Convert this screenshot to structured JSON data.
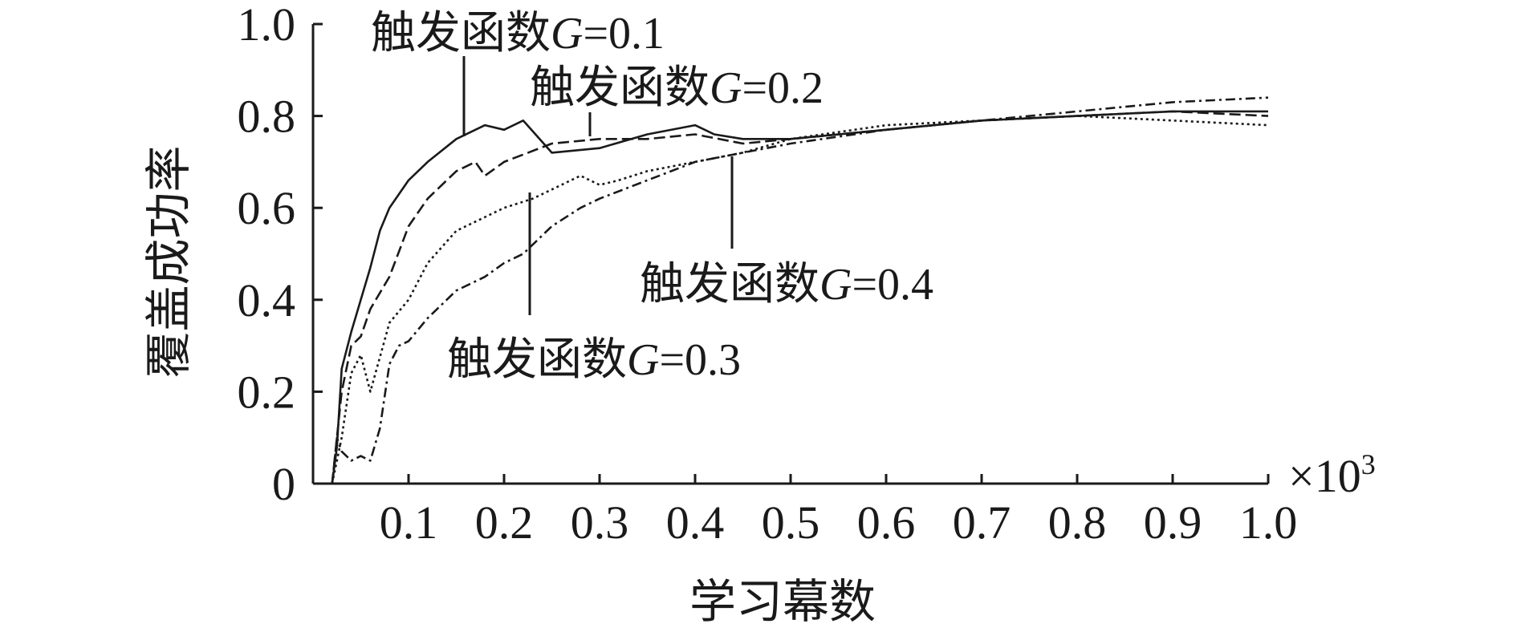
{
  "chart_data": {
    "type": "line",
    "title": "",
    "xlabel": "学习幕数",
    "ylabel": "覆盖成功率",
    "x_multiplier": "×10",
    "x_multiplier_exp": "3",
    "xlim": [
      0.0,
      1.0
    ],
    "ylim": [
      0.0,
      1.0
    ],
    "x_ticks": [
      0.1,
      0.2,
      0.3,
      0.4,
      0.5,
      0.6,
      0.7,
      0.8,
      0.9,
      1.0
    ],
    "x_tick_labels": [
      "0.1",
      "0.2",
      "0.3",
      "0.4",
      "0.5",
      "0.6",
      "0.7",
      "0.8",
      "0.9",
      "1.0"
    ],
    "y_ticks": [
      0,
      0.2,
      0.4,
      0.6,
      0.8,
      1.0
    ],
    "y_tick_labels": [
      "0",
      "0.2",
      "0.4",
      "0.6",
      "0.8",
      "1.0"
    ],
    "grid": false,
    "legend": "none",
    "series": [
      {
        "name": "触发函数G=0.1",
        "label_prefix": "触发函数",
        "label_g": "G",
        "label_value": "=0.1",
        "dash": "",
        "x": [
          0.02,
          0.025,
          0.03,
          0.04,
          0.05,
          0.06,
          0.07,
          0.08,
          0.1,
          0.12,
          0.15,
          0.18,
          0.2,
          0.22,
          0.25,
          0.3,
          0.35,
          0.4,
          0.42,
          0.45,
          0.5,
          0.6,
          0.7,
          0.8,
          0.9,
          1.0
        ],
        "y": [
          0.0,
          0.08,
          0.25,
          0.33,
          0.4,
          0.47,
          0.55,
          0.6,
          0.66,
          0.7,
          0.75,
          0.78,
          0.77,
          0.79,
          0.72,
          0.73,
          0.76,
          0.78,
          0.76,
          0.75,
          0.75,
          0.77,
          0.79,
          0.8,
          0.81,
          0.81
        ]
      },
      {
        "name": "触发函数G=0.2",
        "label_prefix": "触发函数",
        "label_g": "G",
        "label_value": "=0.2",
        "dash": "14 6",
        "x": [
          0.02,
          0.03,
          0.04,
          0.05,
          0.06,
          0.08,
          0.1,
          0.12,
          0.15,
          0.17,
          0.18,
          0.2,
          0.25,
          0.3,
          0.35,
          0.4,
          0.45,
          0.5,
          0.6,
          0.7,
          0.8,
          0.9,
          1.0
        ],
        "y": [
          0.0,
          0.2,
          0.3,
          0.32,
          0.38,
          0.45,
          0.56,
          0.62,
          0.68,
          0.7,
          0.67,
          0.7,
          0.74,
          0.75,
          0.75,
          0.76,
          0.74,
          0.75,
          0.77,
          0.79,
          0.8,
          0.81,
          0.8
        ]
      },
      {
        "name": "触发函数G=0.3",
        "label_prefix": "触发函数",
        "label_g": "G",
        "label_value": "=0.3",
        "dash": "3 4",
        "x": [
          0.02,
          0.03,
          0.04,
          0.05,
          0.06,
          0.08,
          0.1,
          0.12,
          0.15,
          0.18,
          0.2,
          0.23,
          0.25,
          0.28,
          0.3,
          0.32,
          0.35,
          0.4,
          0.45,
          0.5,
          0.6,
          0.7,
          0.8,
          0.9,
          1.0
        ],
        "y": [
          0.0,
          0.1,
          0.24,
          0.28,
          0.2,
          0.35,
          0.4,
          0.48,
          0.55,
          0.58,
          0.6,
          0.62,
          0.64,
          0.67,
          0.65,
          0.66,
          0.68,
          0.7,
          0.72,
          0.75,
          0.78,
          0.79,
          0.8,
          0.79,
          0.78
        ]
      },
      {
        "name": "触发函数G=0.4",
        "label_prefix": "触发函数",
        "label_g": "G",
        "label_value": "=0.4",
        "dash": "12 5 3 5",
        "x": [
          0.02,
          0.025,
          0.03,
          0.04,
          0.05,
          0.06,
          0.07,
          0.08,
          0.09,
          0.1,
          0.12,
          0.15,
          0.18,
          0.2,
          0.22,
          0.25,
          0.28,
          0.3,
          0.35,
          0.4,
          0.45,
          0.5,
          0.6,
          0.7,
          0.8,
          0.9,
          1.0
        ],
        "y": [
          0.0,
          0.1,
          0.07,
          0.05,
          0.06,
          0.05,
          0.12,
          0.26,
          0.3,
          0.31,
          0.36,
          0.42,
          0.45,
          0.48,
          0.5,
          0.56,
          0.6,
          0.62,
          0.66,
          0.7,
          0.72,
          0.74,
          0.77,
          0.79,
          0.81,
          0.83,
          0.84
        ]
      }
    ]
  }
}
